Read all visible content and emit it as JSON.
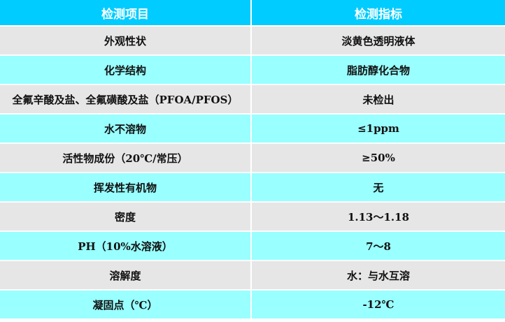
{
  "colors": {
    "header": "#00ccff",
    "row_gray": "#e6e6e6",
    "row_cyan": "#99ffff"
  },
  "table": {
    "headers": [
      "检测项目",
      "检测指标"
    ],
    "rows": [
      [
        "外观性状",
        "淡黄色透明液体"
      ],
      [
        "化学结构",
        "脂肪醇化合物"
      ],
      [
        "全氟辛酸及盐、全氟磺酸及盐（PFOA/PFOS）",
        "未检出"
      ],
      [
        "水不溶物",
        "≤1ppm"
      ],
      [
        "活性物成份（20℃/常压）",
        "≥50%"
      ],
      [
        "挥发性有机物",
        "无"
      ],
      [
        "密度",
        "1.13～1.18"
      ],
      [
        "PH（10%水溶液）",
        "7～8"
      ],
      [
        "溶解度",
        "水：与水互溶"
      ],
      [
        "凝固点（℃）",
        "-12℃"
      ]
    ]
  }
}
